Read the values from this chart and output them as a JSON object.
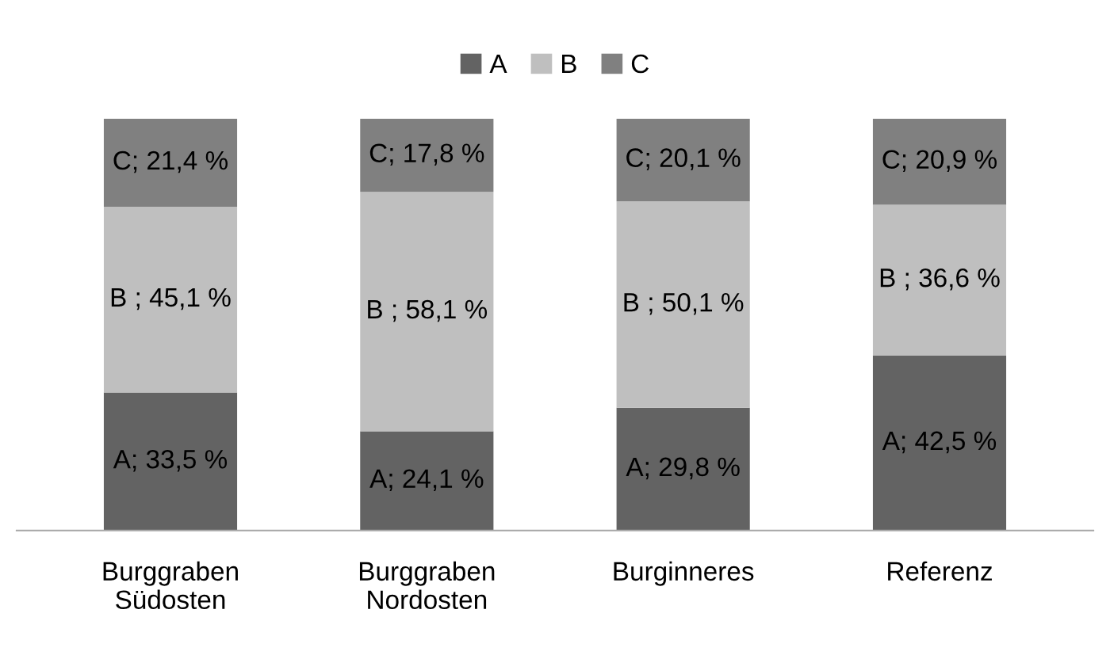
{
  "chart_data": {
    "type": "bar",
    "stacked": true,
    "categories": [
      "Burggraben\nSüdosten",
      "Burggraben\nNordosten",
      "Burginneres",
      "Referenz"
    ],
    "ylim": [
      0,
      100
    ],
    "series": [
      {
        "name": "A",
        "color": "#636363",
        "values": [
          33.5,
          24.1,
          29.8,
          42.5
        ],
        "value_labels": [
          "A; 33,5 %",
          "A; 24,1 %",
          "A; 29,8 %",
          "A; 42,5 %"
        ]
      },
      {
        "name": "B",
        "color": "#bfbfbf",
        "values": [
          45.1,
          58.1,
          50.1,
          36.6
        ],
        "value_labels": [
          "B ; 45,1 %",
          "B ; 58,1 %",
          "B ; 50,1 %",
          "B ; 36,6 %"
        ]
      },
      {
        "name": "C",
        "color": "#808080",
        "values": [
          21.4,
          17.8,
          20.1,
          20.9
        ],
        "value_labels": [
          "C; 21,4 %",
          "C; 17,8 %",
          "C; 20,1 %",
          "C; 20,9 %"
        ]
      }
    ],
    "legend": "top",
    "grid": false,
    "tick_labels": "x"
  }
}
